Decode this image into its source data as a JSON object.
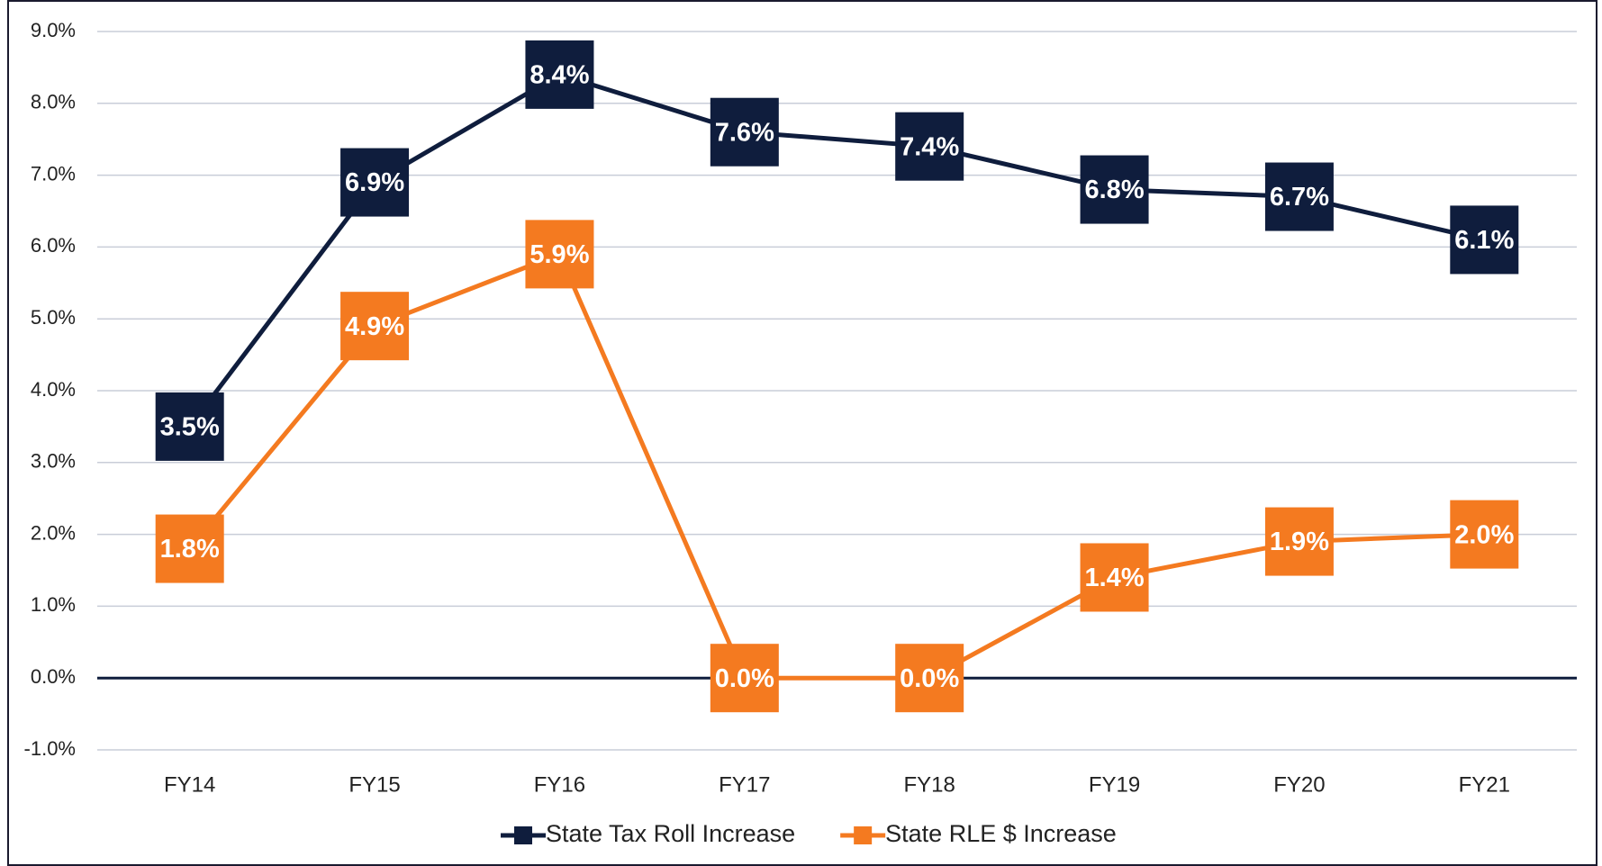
{
  "chart_data": {
    "type": "line",
    "categories": [
      "FY14",
      "FY15",
      "FY16",
      "FY17",
      "FY18",
      "FY19",
      "FY20",
      "FY21"
    ],
    "series": [
      {
        "name": "State Tax Roll Increase",
        "color": "#0f1d3d",
        "values": [
          3.5,
          6.9,
          8.4,
          7.6,
          7.4,
          6.8,
          6.7,
          6.1
        ],
        "value_labels": [
          "3.5%",
          "6.9%",
          "8.4%",
          "7.6%",
          "7.4%",
          "6.8%",
          "6.7%",
          "6.1%"
        ]
      },
      {
        "name": "State RLE $ Increase",
        "color": "#f47a20",
        "values": [
          1.8,
          4.9,
          5.9,
          0.0,
          0.0,
          1.4,
          1.9,
          2.0
        ],
        "value_labels": [
          "1.8%",
          "4.9%",
          "5.9%",
          "0.0%",
          "0.0%",
          "1.4%",
          "1.9%",
          "2.0%"
        ]
      }
    ],
    "ylim": [
      -1,
      9
    ],
    "yticks": [
      {
        "value": -1,
        "label": "-1.0%"
      },
      {
        "value": 0,
        "label": "0.0%"
      },
      {
        "value": 1,
        "label": "1.0%"
      },
      {
        "value": 2,
        "label": "2.0%"
      },
      {
        "value": 3,
        "label": "3.0%"
      },
      {
        "value": 4,
        "label": "4.0%"
      },
      {
        "value": 5,
        "label": "5.0%"
      },
      {
        "value": 6,
        "label": "6.0%"
      },
      {
        "value": 7,
        "label": "7.0%"
      },
      {
        "value": 8,
        "label": "8.0%"
      },
      {
        "value": 9,
        "label": "9.0%"
      }
    ],
    "grid": true,
    "legend": "bottom"
  }
}
